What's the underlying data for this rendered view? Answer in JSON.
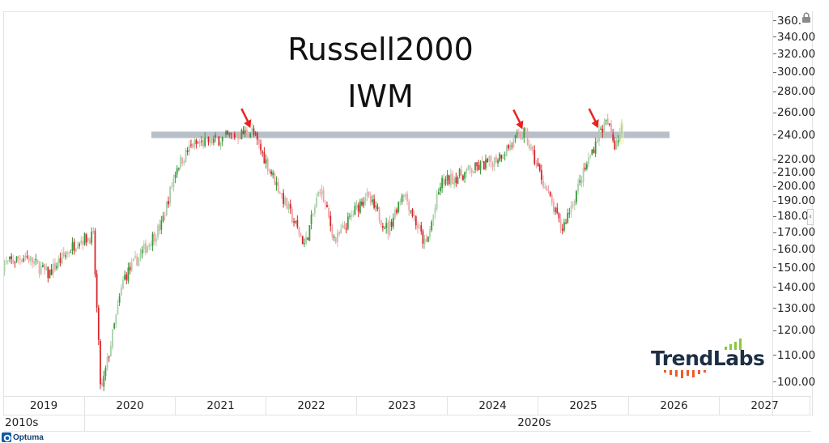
{
  "chart_data": {
    "type": "candlestick",
    "title": "Russell2000",
    "subtitle": "IWM",
    "xlabel": "",
    "ylabel": "",
    "y_scale": "log",
    "ylim": [
      95,
      365
    ],
    "y_ticks": [
      360,
      340,
      320,
      300,
      280,
      260,
      240,
      220,
      210,
      200,
      190,
      180,
      170,
      160,
      150,
      140,
      130,
      120,
      110,
      100
    ],
    "y_tick_labels": [
      "360.",
      "340.00",
      "320.00",
      "300.00",
      "280.00",
      "260.00",
      "240.00",
      "220.00",
      "210.00",
      "200.00",
      "190.00",
      "180.0",
      "170.00",
      "160.00",
      "150.00",
      "140.00",
      "130.00",
      "120.00",
      "110.00",
      "100.00"
    ],
    "x_tick_labels": [
      "2019",
      "2020",
      "2021",
      "2022",
      "2023",
      "2024",
      "2025",
      "2026",
      "2027"
    ],
    "x_decade_labels": [
      "2010s",
      "2020s"
    ],
    "resistance_line": {
      "value": 241,
      "from": "2020-08",
      "to": "2025-12",
      "color": "#b8bfc9"
    },
    "annotations": [
      {
        "type": "arrow",
        "date": "2021-11",
        "value": 244,
        "color": "#e8231f"
      },
      {
        "type": "arrow",
        "date": "2024-11",
        "value": 243,
        "color": "#e8231f"
      },
      {
        "type": "arrow",
        "date": "2025-09",
        "value": 244,
        "color": "#e8231f"
      }
    ],
    "series": [
      {
        "name": "IWM",
        "key_points": [
          {
            "date": "2019-02",
            "value": 152
          },
          {
            "date": "2019-05",
            "value": 157
          },
          {
            "date": "2019-08",
            "value": 147
          },
          {
            "date": "2019-12",
            "value": 166
          },
          {
            "date": "2020-02",
            "value": 168
          },
          {
            "date": "2020-03",
            "value": 96
          },
          {
            "date": "2020-06",
            "value": 145
          },
          {
            "date": "2020-11",
            "value": 175
          },
          {
            "date": "2021-01",
            "value": 215
          },
          {
            "date": "2021-03",
            "value": 232
          },
          {
            "date": "2021-11",
            "value": 244
          },
          {
            "date": "2022-06",
            "value": 163
          },
          {
            "date": "2022-08",
            "value": 200
          },
          {
            "date": "2022-10",
            "value": 165
          },
          {
            "date": "2023-02",
            "value": 195
          },
          {
            "date": "2023-05",
            "value": 172
          },
          {
            "date": "2023-07",
            "value": 198
          },
          {
            "date": "2023-10",
            "value": 162
          },
          {
            "date": "2023-12",
            "value": 203
          },
          {
            "date": "2024-07",
            "value": 220
          },
          {
            "date": "2024-11",
            "value": 243
          },
          {
            "date": "2025-04",
            "value": 172
          },
          {
            "date": "2025-09",
            "value": 244
          },
          {
            "date": "2025-10",
            "value": 252
          },
          {
            "date": "2025-11",
            "value": 233
          },
          {
            "date": "2025-12",
            "value": 248
          }
        ]
      }
    ],
    "grid": false,
    "legend": "none",
    "colors": {
      "up": "#3a9a3a",
      "down": "#d6262b",
      "up_light": "#a9cfa9",
      "down_light": "#f0a3a7"
    }
  },
  "branding": {
    "logo_text": "TrendLabs",
    "footer_text": "Optuma"
  },
  "icons": {
    "lock": "lock-icon",
    "collapse": "chevron-left-icon"
  },
  "ui": {
    "collapse_glyph": "‹"
  }
}
